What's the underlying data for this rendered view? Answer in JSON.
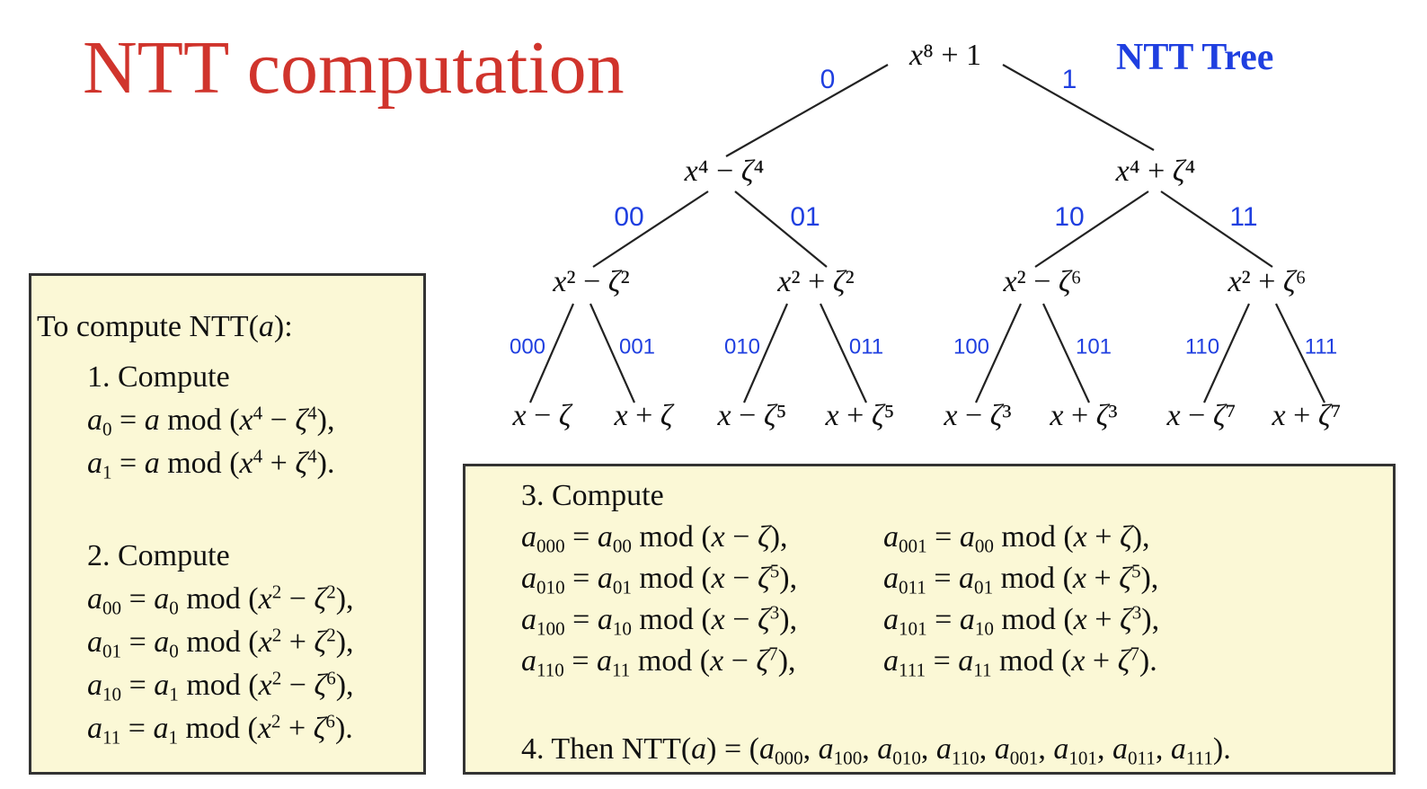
{
  "title": "NTT computation",
  "tree_title": "NTT Tree",
  "colors": {
    "title": "#d0342c",
    "labels": "#1f3fe0",
    "box_fill": "#fbf8d6",
    "box_border": "#333333"
  },
  "tree": {
    "nodes": [
      {
        "id": "root",
        "label": "x⁸ + 1"
      },
      {
        "id": "n0",
        "label": "x⁴ − ζ⁴"
      },
      {
        "id": "n1",
        "label": "x⁴ + ζ⁴"
      },
      {
        "id": "n00",
        "label": "x² − ζ²"
      },
      {
        "id": "n01",
        "label": "x² + ζ²"
      },
      {
        "id": "n10",
        "label": "x² − ζ⁶"
      },
      {
        "id": "n11",
        "label": "x² + ζ⁶"
      },
      {
        "id": "n000",
        "label": "x − ζ"
      },
      {
        "id": "n001",
        "label": "x + ζ"
      },
      {
        "id": "n010",
        "label": "x − ζ⁵"
      },
      {
        "id": "n011",
        "label": "x + ζ⁵"
      },
      {
        "id": "n100",
        "label": "x − ζ³"
      },
      {
        "id": "n101",
        "label": "x + ζ³"
      },
      {
        "id": "n110",
        "label": "x − ζ⁷"
      },
      {
        "id": "n111",
        "label": "x + ζ⁷"
      }
    ],
    "edges": [
      {
        "from": "root",
        "to": "n0",
        "label": "0"
      },
      {
        "from": "root",
        "to": "n1",
        "label": "1"
      },
      {
        "from": "n0",
        "to": "n00",
        "label": "00"
      },
      {
        "from": "n0",
        "to": "n01",
        "label": "01"
      },
      {
        "from": "n1",
        "to": "n10",
        "label": "10"
      },
      {
        "from": "n1",
        "to": "n11",
        "label": "11"
      },
      {
        "from": "n00",
        "to": "n000",
        "label": "000"
      },
      {
        "from": "n00",
        "to": "n001",
        "label": "001"
      },
      {
        "from": "n01",
        "to": "n010",
        "label": "010"
      },
      {
        "from": "n01",
        "to": "n011",
        "label": "011"
      },
      {
        "from": "n10",
        "to": "n100",
        "label": "100"
      },
      {
        "from": "n10",
        "to": "n101",
        "label": "101"
      },
      {
        "from": "n11",
        "to": "n110",
        "label": "110"
      },
      {
        "from": "n11",
        "to": "n111",
        "label": "111"
      }
    ]
  },
  "box1": {
    "heading": "To compute NTT(a):",
    "step1": {
      "label": "1. Compute",
      "lines": [
        "a₀ = a mod (x⁴ − ζ⁴),",
        "a₁ = a mod (x⁴ + ζ⁴)."
      ]
    },
    "step2": {
      "label": "2. Compute",
      "lines": [
        "a₀₀ = a₀ mod (x² − ζ²),",
        "a₀₁ = a₀ mod (x² + ζ²),",
        "a₁₀ = a₁ mod (x² − ζ⁶),",
        "a₁₁ = a₁ mod (x² + ζ⁶)."
      ]
    }
  },
  "box2": {
    "step3": {
      "label": "3. Compute",
      "left": [
        "a₀₀₀ = a₀₀ mod (x − ζ),",
        "a₀₁₀ = a₀₁ mod (x − ζ⁵),",
        "a₁₀₀ = a₁₀ mod (x − ζ³),",
        "a₁₁₀ = a₁₁ mod (x − ζ⁷),"
      ],
      "right": [
        "a₀₀₁ = a₀₀ mod (x + ζ),",
        "a₀₁₁ = a₀₁ mod (x + ζ⁵),",
        "a₁₀₁ = a₁₀ mod (x + ζ³),",
        "a₁₁₁ = a₁₁ mod (x + ζ⁷)."
      ]
    },
    "step4": "4. Then NTT(a) = (a₀₀₀, a₁₀₀, a₀₁₀, a₁₁₀, a₀₀₁, a₁₀₁, a₀₁₁, a₁₁₁)."
  }
}
